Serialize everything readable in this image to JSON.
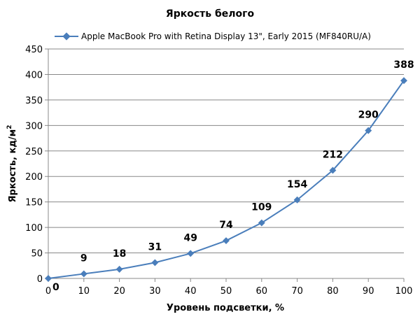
{
  "chart_data": {
    "type": "line",
    "title": "Яркость белого",
    "xlabel": "Уровень подсветки, %",
    "ylabel_main": "Яркость, кд/м",
    "ylabel_sup": "2",
    "x": [
      0,
      10,
      20,
      30,
      40,
      50,
      60,
      70,
      80,
      90,
      100
    ],
    "xlim": [
      0,
      100
    ],
    "ylim": [
      0,
      450
    ],
    "x_ticks": [
      0,
      10,
      20,
      30,
      40,
      50,
      60,
      70,
      80,
      90,
      100
    ],
    "y_ticks": [
      0,
      50,
      100,
      150,
      200,
      250,
      300,
      350,
      400,
      450
    ],
    "grid": "horizontal",
    "legend_position": "top",
    "series": [
      {
        "name": "Apple MacBook Pro with Retina Display 13\", Early 2015 (MF840RU/A)",
        "values": [
          0,
          9,
          18,
          31,
          49,
          74,
          109,
          154,
          212,
          290,
          388
        ],
        "color": "#4a7ebb",
        "marker": "diamond"
      }
    ]
  }
}
